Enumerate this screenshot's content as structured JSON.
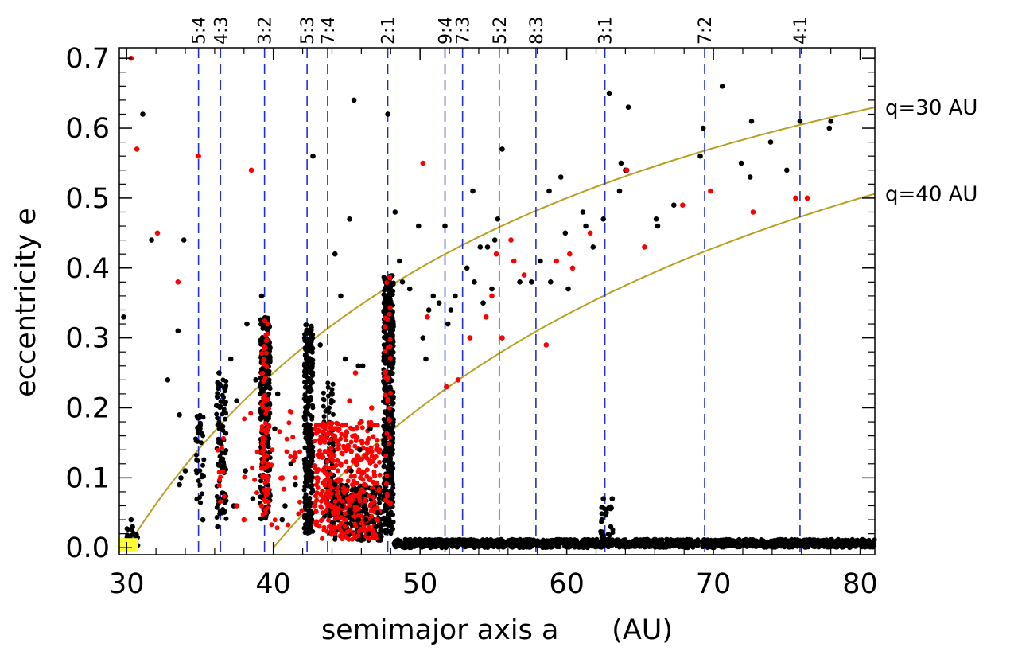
{
  "chart_data": {
    "type": "scatter",
    "title": "",
    "xlabel": "semimajor axis a      (AU)",
    "ylabel": "eccentricity e",
    "xlim": [
      29.5,
      81
    ],
    "ylim": [
      -0.01,
      0.715
    ],
    "xticks": [
      "30",
      "40",
      "50",
      "60",
      "70",
      "80"
    ],
    "xtick_values": [
      30,
      40,
      50,
      60,
      70,
      80
    ],
    "yticks": [
      "0.0",
      "0.1",
      "0.2",
      "0.3",
      "0.4",
      "0.5",
      "0.6",
      "0.7"
    ],
    "ytick_values": [
      0,
      0.1,
      0.2,
      0.3,
      0.4,
      0.5,
      0.6,
      0.7
    ],
    "grid": false,
    "resonances": [
      {
        "label": "5:4",
        "a": 34.9
      },
      {
        "label": "4:3",
        "a": 36.4
      },
      {
        "label": "3:2",
        "a": 39.4
      },
      {
        "label": "5:3",
        "a": 42.3
      },
      {
        "label": "7:4",
        "a": 43.7
      },
      {
        "label": "2:1",
        "a": 47.8
      },
      {
        "label": "9:4",
        "a": 51.7
      },
      {
        "label": "7:3",
        "a": 52.9
      },
      {
        "label": "5:2",
        "a": 55.4
      },
      {
        "label": "8:3",
        "a": 57.9
      },
      {
        "label": "3:1",
        "a": 62.6
      },
      {
        "label": "7:2",
        "a": 69.4
      },
      {
        "label": "4:1",
        "a": 75.9
      }
    ],
    "curves": [
      {
        "label": "q=30 AU",
        "q": 30,
        "color": "#b5a020"
      },
      {
        "label": "q=40 AU",
        "q": 40,
        "color": "#b5a020"
      }
    ],
    "sun_marker": {
      "a": 30.1,
      "e": 0.0,
      "color": "#ffff33"
    },
    "series": [
      {
        "color": "#000000",
        "points": [
          [
            29.8,
            0.33
          ],
          [
            30.4,
            0.03
          ],
          [
            30.5,
            0.02
          ],
          [
            30.3,
            0.04
          ],
          [
            31.1,
            0.62
          ],
          [
            31.7,
            0.44
          ],
          [
            32.8,
            0.24
          ],
          [
            33.6,
            0.19
          ],
          [
            33.5,
            0.31
          ],
          [
            33.9,
            0.44
          ],
          [
            33.7,
            0.1
          ],
          [
            34.0,
            0.11
          ],
          [
            33.6,
            0.09
          ],
          [
            35.2,
            0.04
          ],
          [
            36.3,
            0.25
          ],
          [
            36.5,
            0.05
          ],
          [
            36.2,
            0.03
          ],
          [
            37.1,
            0.27
          ],
          [
            37.5,
            0.21
          ],
          [
            37.3,
            0.06
          ],
          [
            38.2,
            0.32
          ],
          [
            38.8,
            0.24
          ],
          [
            38.1,
            0.11
          ],
          [
            38.6,
            0.07
          ],
          [
            39.2,
            0.36
          ],
          [
            40.3,
            0.22
          ],
          [
            40.1,
            0.17
          ],
          [
            40.6,
            0.04
          ],
          [
            41.2,
            0.12
          ],
          [
            41.5,
            0.09
          ],
          [
            40.8,
            0.06
          ],
          [
            42.7,
            0.56
          ],
          [
            43.2,
            0.29
          ],
          [
            44.2,
            0.42
          ],
          [
            44.6,
            0.36
          ],
          [
            45.5,
            0.64
          ],
          [
            45.2,
            0.47
          ],
          [
            44.9,
            0.27
          ],
          [
            45.8,
            0.26
          ],
          [
            46.1,
            0.26
          ],
          [
            45.3,
            0.11
          ],
          [
            45.9,
            0.14
          ],
          [
            46.6,
            0.17
          ],
          [
            46.3,
            0.04
          ],
          [
            44.2,
            0.09
          ],
          [
            44.7,
            0.06
          ],
          [
            45.3,
            0.05
          ],
          [
            45.8,
            0.04
          ],
          [
            46.2,
            0.06
          ],
          [
            46.8,
            0.08
          ],
          [
            47.1,
            0.05
          ],
          [
            47.0,
            0.03
          ],
          [
            46.5,
            0.02
          ],
          [
            47.8,
            0.62
          ],
          [
            48.3,
            0.48
          ],
          [
            48.8,
            0.38
          ],
          [
            49.3,
            0.37
          ],
          [
            48.6,
            0.41
          ],
          [
            49.9,
            0.46
          ],
          [
            50.6,
            0.34
          ],
          [
            50.9,
            0.36
          ],
          [
            51.3,
            0.35
          ],
          [
            50.2,
            0.3
          ],
          [
            50.4,
            0.27
          ],
          [
            51.7,
            0.46
          ],
          [
            52.1,
            0.34
          ],
          [
            52.4,
            0.36
          ],
          [
            51.9,
            0.32
          ],
          [
            53.2,
            0.4
          ],
          [
            53.6,
            0.51
          ],
          [
            54.1,
            0.43
          ],
          [
            54.6,
            0.43
          ],
          [
            53.7,
            0.38
          ],
          [
            54.3,
            0.35
          ],
          [
            54.9,
            0.37
          ],
          [
            55.3,
            0.47
          ],
          [
            55.6,
            0.57
          ],
          [
            55.1,
            0.44
          ],
          [
            56.8,
            0.38
          ],
          [
            57.6,
            0.38
          ],
          [
            58.2,
            0.41
          ],
          [
            58.8,
            0.51
          ],
          [
            59.6,
            0.53
          ],
          [
            58.9,
            0.38
          ],
          [
            59.9,
            0.45
          ],
          [
            60.1,
            0.37
          ],
          [
            61.1,
            0.48
          ],
          [
            61.3,
            0.46
          ],
          [
            61.8,
            0.43
          ],
          [
            62.5,
            0.47
          ],
          [
            62.9,
            0.65
          ],
          [
            63.6,
            0.51
          ],
          [
            63.7,
            0.55
          ],
          [
            64.0,
            0.54
          ],
          [
            64.2,
            0.63
          ],
          [
            62.5,
            0.07
          ],
          [
            62.7,
            0.05
          ],
          [
            63.1,
            0.07
          ],
          [
            62.4,
            0.04
          ],
          [
            63.0,
            0.03
          ],
          [
            66.1,
            0.47
          ],
          [
            66.2,
            0.46
          ],
          [
            67.3,
            0.49
          ],
          [
            69.1,
            0.56
          ],
          [
            69.3,
            0.6
          ],
          [
            70.6,
            0.66
          ],
          [
            71.9,
            0.55
          ],
          [
            72.5,
            0.53
          ],
          [
            72.6,
            0.61
          ],
          [
            73.9,
            0.58
          ],
          [
            75.0,
            0.54
          ],
          [
            75.9,
            0.61
          ],
          [
            77.9,
            0.6
          ],
          [
            78.0,
            0.61
          ]
        ]
      },
      {
        "color": "#ff0000",
        "points": [
          [
            30.3,
            0.7
          ],
          [
            30.7,
            0.57
          ],
          [
            32.1,
            0.45
          ],
          [
            33.5,
            0.38
          ],
          [
            34.9,
            0.56
          ],
          [
            38.5,
            0.54
          ],
          [
            40.6,
            0.1
          ],
          [
            39.2,
            0.06
          ],
          [
            37.5,
            0.06
          ],
          [
            38.0,
            0.04
          ],
          [
            41.5,
            0.13
          ],
          [
            43.0,
            0.1
          ],
          [
            42.8,
            0.06
          ],
          [
            43.4,
            0.07
          ],
          [
            43.9,
            0.03
          ],
          [
            44.2,
            0.05
          ],
          [
            44.6,
            0.12
          ],
          [
            44.9,
            0.16
          ],
          [
            45.2,
            0.21
          ],
          [
            45.6,
            0.25
          ],
          [
            46.0,
            0.18
          ],
          [
            46.4,
            0.15
          ],
          [
            46.7,
            0.2
          ],
          [
            47.1,
            0.14
          ],
          [
            46.2,
            0.09
          ],
          [
            45.4,
            0.09
          ],
          [
            44.8,
            0.02
          ],
          [
            50.2,
            0.55
          ],
          [
            50.5,
            0.33
          ],
          [
            51.8,
            0.23
          ],
          [
            52.6,
            0.24
          ],
          [
            53.4,
            0.3
          ],
          [
            54.5,
            0.33
          ],
          [
            54.9,
            0.36
          ],
          [
            55.2,
            0.42
          ],
          [
            55.6,
            0.3
          ],
          [
            56.2,
            0.44
          ],
          [
            56.4,
            0.41
          ],
          [
            57.1,
            0.39
          ],
          [
            58.6,
            0.29
          ],
          [
            59.3,
            0.41
          ],
          [
            60.2,
            0.42
          ],
          [
            60.4,
            0.4
          ],
          [
            61.6,
            0.45
          ],
          [
            64.1,
            0.54
          ],
          [
            65.3,
            0.43
          ],
          [
            67.9,
            0.49
          ],
          [
            69.8,
            0.51
          ],
          [
            72.7,
            0.48
          ],
          [
            75.6,
            0.5
          ],
          [
            76.4,
            0.5
          ]
        ]
      }
    ],
    "clusters": [
      {
        "color": "#000000",
        "a_min": 47.5,
        "a_max": 48.2,
        "e_min": 0.02,
        "e_max": 0.39,
        "n": 520
      },
      {
        "color": "#000000",
        "a_min": 42.1,
        "a_max": 42.7,
        "e_min": 0.02,
        "e_max": 0.32,
        "n": 300
      },
      {
        "color": "#000000",
        "a_min": 39.1,
        "a_max": 39.8,
        "e_min": 0.04,
        "e_max": 0.33,
        "n": 260
      },
      {
        "color": "#000000",
        "a_min": 36.1,
        "a_max": 36.8,
        "e_min": 0.04,
        "e_max": 0.24,
        "n": 90
      },
      {
        "color": "#000000",
        "a_min": 34.7,
        "a_max": 35.3,
        "e_min": 0.05,
        "e_max": 0.19,
        "n": 40
      },
      {
        "color": "#000000",
        "a_min": 43.4,
        "a_max": 44.1,
        "e_min": 0.02,
        "e_max": 0.24,
        "n": 80
      },
      {
        "color": "#000000",
        "a_min": 44.0,
        "a_max": 47.4,
        "e_min": 0.01,
        "e_max": 0.09,
        "n": 260
      },
      {
        "color": "#000000",
        "a_min": 48.2,
        "a_max": 81.0,
        "e_min": 0.0,
        "e_max": 0.012,
        "n": 1400
      },
      {
        "color": "#000000",
        "a_min": 30.0,
        "a_max": 30.8,
        "e_min": 0.0,
        "e_max": 0.03,
        "n": 20
      },
      {
        "color": "#000000",
        "a_min": 62.3,
        "a_max": 63.2,
        "e_min": 0.01,
        "e_max": 0.06,
        "n": 25
      },
      {
        "color": "#ff0000",
        "a_min": 42.8,
        "a_max": 47.3,
        "e_min": 0.01,
        "e_max": 0.18,
        "n": 380
      },
      {
        "color": "#ff0000",
        "a_min": 39.2,
        "a_max": 39.7,
        "e_min": 0.05,
        "e_max": 0.33,
        "n": 70
      },
      {
        "color": "#ff0000",
        "a_min": 36.2,
        "a_max": 36.7,
        "e_min": 0.06,
        "e_max": 0.18,
        "n": 10
      },
      {
        "color": "#ff0000",
        "a_min": 37.5,
        "a_max": 42.0,
        "e_min": 0.02,
        "e_max": 0.2,
        "n": 40
      },
      {
        "color": "#ff0000",
        "a_min": 47.6,
        "a_max": 48.0,
        "e_min": 0.05,
        "e_max": 0.39,
        "n": 40
      }
    ]
  }
}
